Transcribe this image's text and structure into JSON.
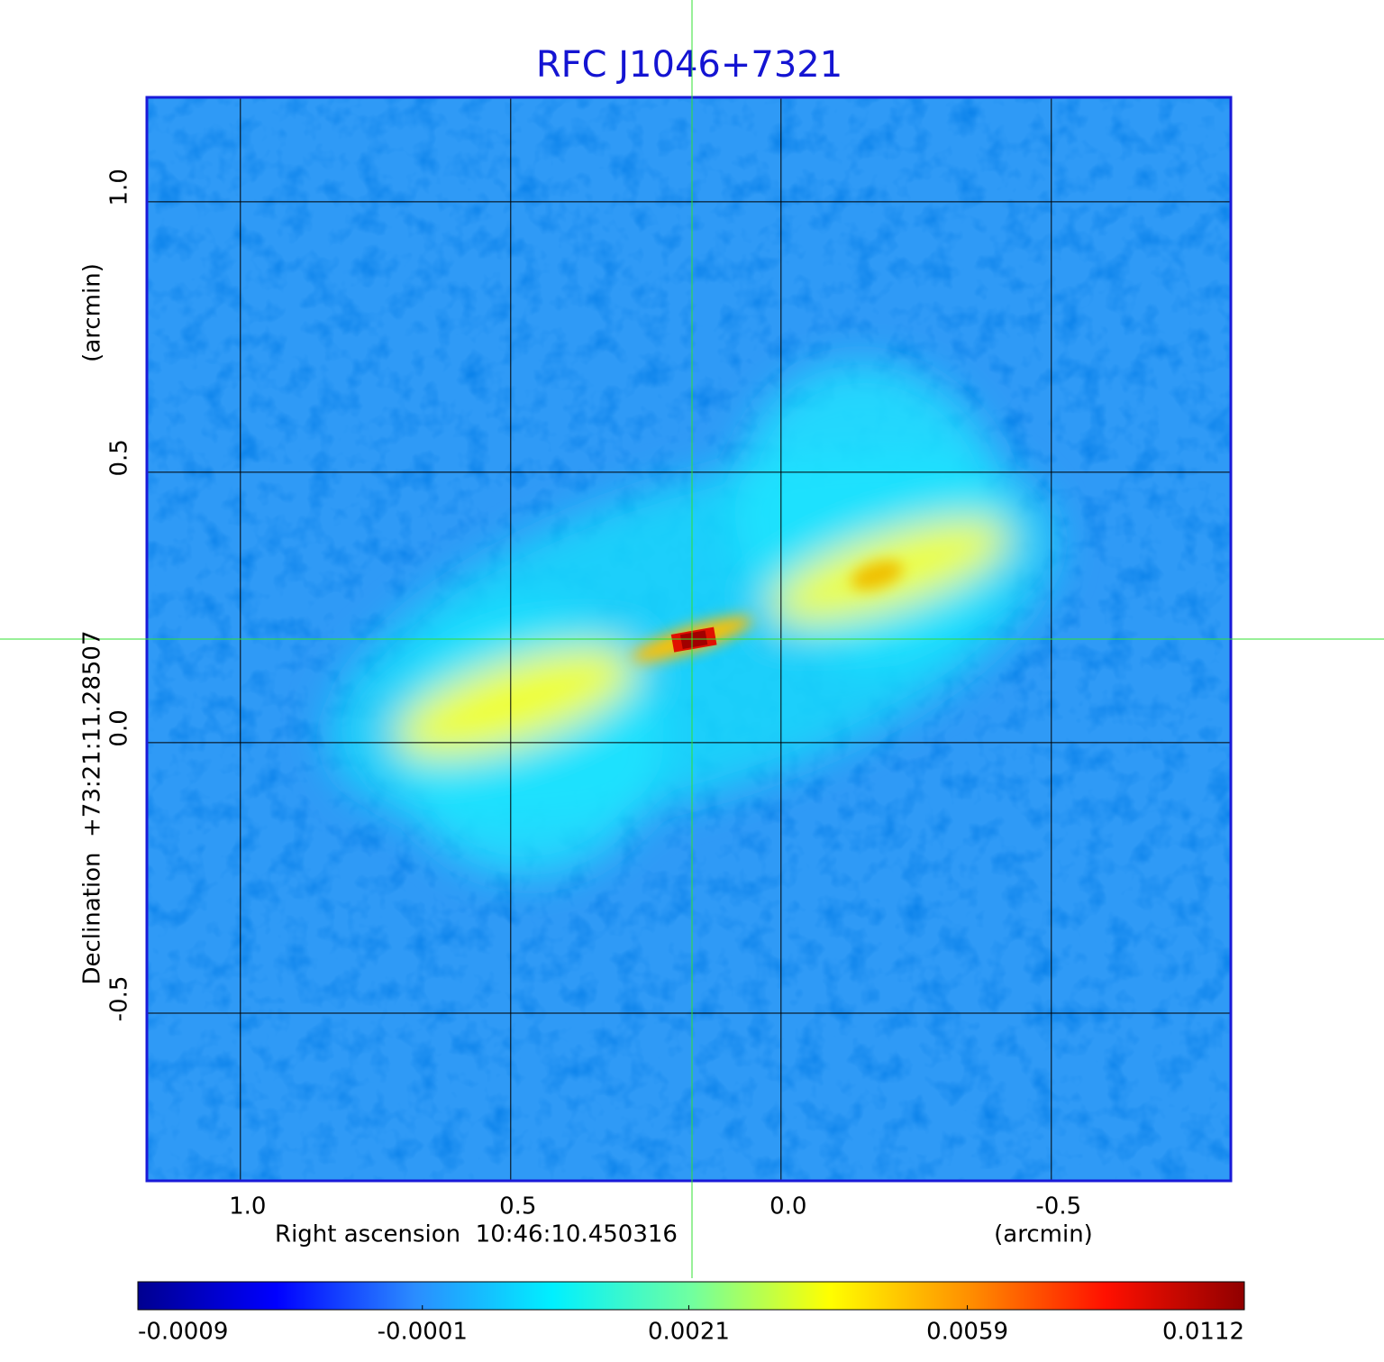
{
  "chart_data": {
    "type": "image",
    "title": "RFC J1046+7321",
    "xlabel": "Right ascension  10:46:10.450316",
    "xunit": "(arcmin)",
    "ylabel": "Declination  +73:21:11.28507",
    "yunit": "(arcmin)",
    "xlim": [
      1.173,
      -0.832
    ],
    "ylim": [
      -0.81,
      1.193
    ],
    "xticks": [
      {
        "value": 1.0,
        "label": "1.0"
      },
      0.5,
      {
        "value": 0.0,
        "label": "0.0"
      },
      -0.5
    ],
    "yticks": [
      -0.5,
      {
        "value": 0.0,
        "label": "0.0"
      },
      0.5,
      {
        "value": 1.0,
        "label": "1.0"
      }
    ],
    "grid": true,
    "colorbar": {
      "scale": "sqrt",
      "lim": [
        -0.0009,
        0.0112
      ],
      "ticks": [
        -0.0009,
        -0.0001,
        0.0021,
        0.0059,
        0.0112
      ],
      "colormap": [
        "#000090",
        "#0000ff",
        "#2b8cff",
        "#00f0ff",
        "#70ffa0",
        "#ffff00",
        "#ff9000",
        "#ff1000",
        "#900000"
      ]
    }
  }
}
